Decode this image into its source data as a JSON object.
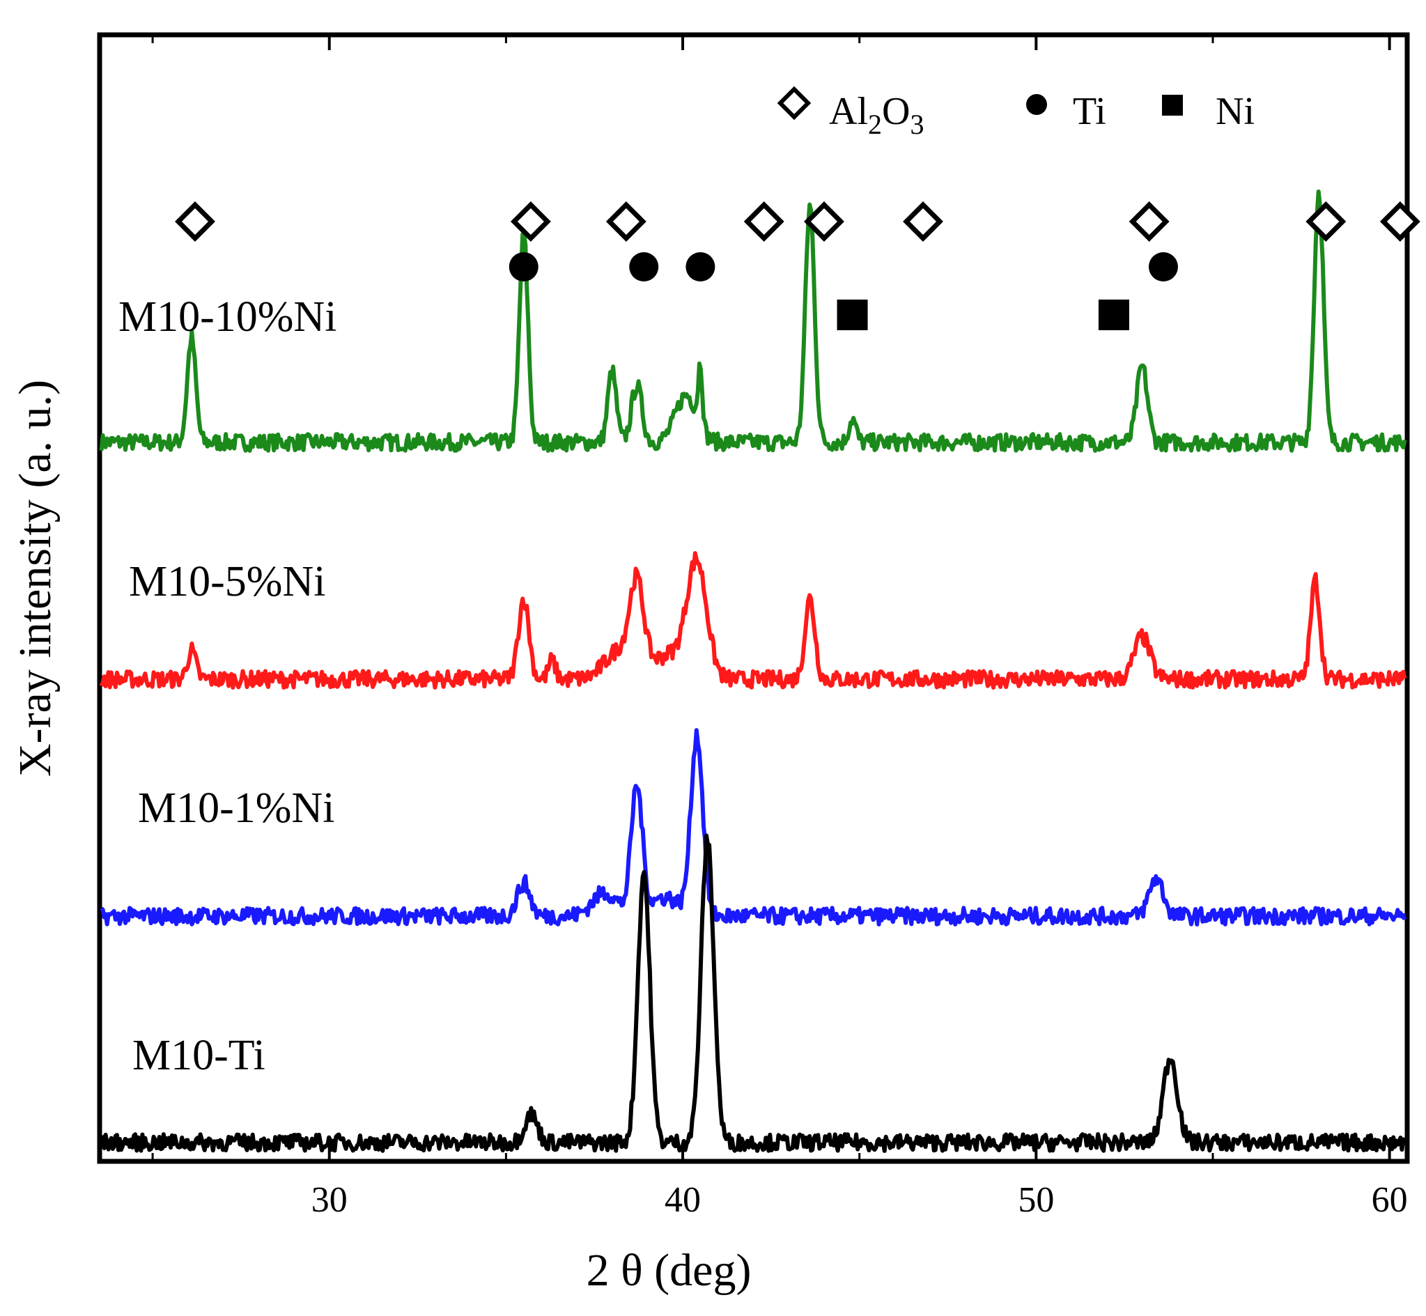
{
  "chart_data": {
    "type": "line",
    "title": "",
    "xlabel": "2 θ (deg)",
    "ylabel": "X-ray intensity (a. u.)",
    "xlim": [
      23.5,
      60.5
    ],
    "x_ticks": [
      30,
      40,
      50,
      60
    ],
    "x_tick_labels": [
      "30",
      "40",
      "50",
      "60"
    ],
    "grid": false,
    "legend": [
      {
        "symbol": "open-diamond",
        "label": "Al",
        "sub1": "2",
        "mid": "O",
        "sub2": "3"
      },
      {
        "symbol": "filled-circle",
        "label": "Ti"
      },
      {
        "symbol": "filled-square",
        "label": "Ni"
      }
    ],
    "legend_position": "top-right",
    "series": [
      {
        "name": "M10-10%Ni",
        "color": "#1b8a1b",
        "baseline": 1.0,
        "peaks": [
          [
            26.1,
            0.22,
            0.12
          ],
          [
            35.5,
            0.44,
            0.12
          ],
          [
            38.0,
            0.15,
            0.12
          ],
          [
            38.7,
            0.12,
            0.15
          ],
          [
            40.1,
            0.1,
            0.3
          ],
          [
            40.5,
            0.13,
            0.06
          ],
          [
            43.6,
            0.5,
            0.13
          ],
          [
            44.8,
            0.05,
            0.1
          ],
          [
            53.0,
            0.16,
            0.15
          ],
          [
            58.0,
            0.53,
            0.13
          ]
        ]
      },
      {
        "name": "M10-5%Ni",
        "color": "#ff1a1a",
        "baseline": 0.0,
        "peaks": [
          [
            26.1,
            0.06,
            0.12
          ],
          [
            35.5,
            0.17,
            0.15
          ],
          [
            36.3,
            0.04,
            0.1
          ],
          [
            38.2,
            0.06,
            0.4
          ],
          [
            38.7,
            0.18,
            0.2
          ],
          [
            40.4,
            0.24,
            0.28
          ],
          [
            39.6,
            0.05,
            0.5
          ],
          [
            43.6,
            0.17,
            0.14
          ],
          [
            53.0,
            0.09,
            0.22
          ],
          [
            57.9,
            0.21,
            0.13
          ]
        ]
      },
      {
        "name": "M10-1%Ni",
        "color": "#1a1aff",
        "baseline": -0.55,
        "peaks": [
          [
            35.5,
            0.07,
            0.18
          ],
          [
            37.8,
            0.05,
            0.35
          ],
          [
            38.7,
            0.27,
            0.16
          ],
          [
            40.4,
            0.38,
            0.17
          ],
          [
            39.5,
            0.04,
            0.4
          ],
          [
            53.4,
            0.08,
            0.2
          ]
        ]
      },
      {
        "name": "M10-Ti",
        "color": "#000000",
        "baseline": -1.0,
        "peaks": [
          [
            35.7,
            0.06,
            0.18
          ],
          [
            38.9,
            0.57,
            0.17
          ],
          [
            40.7,
            0.64,
            0.18
          ],
          [
            53.8,
            0.18,
            0.2
          ]
        ]
      }
    ],
    "markers": {
      "al2o3": [
        26.2,
        35.7,
        38.4,
        42.3,
        44.0,
        46.8,
        53.2,
        58.2,
        60.3
      ],
      "ti": [
        35.5,
        38.9,
        40.5,
        53.6
      ],
      "ni": [
        44.8,
        52.2
      ]
    }
  }
}
